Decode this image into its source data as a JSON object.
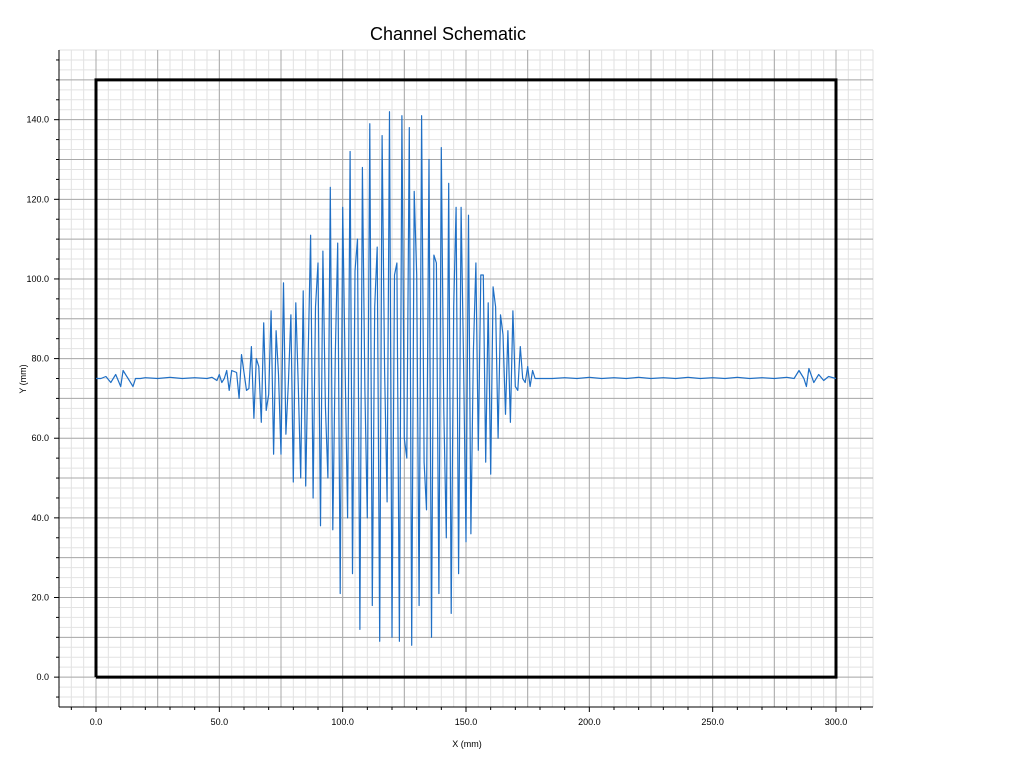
{
  "chart_data": {
    "type": "line",
    "title": "Channel Schematic",
    "xlabel": "X (mm)",
    "ylabel": "Y (mm)",
    "xlim": [
      -15,
      315
    ],
    "ylim": [
      -7.5,
      157.5
    ],
    "grid": true,
    "legend": "none",
    "x_ticks": [
      {
        "value": 0,
        "label": "0.0"
      },
      {
        "value": 50,
        "label": "50.0"
      },
      {
        "value": 100,
        "label": "100.0"
      },
      {
        "value": 150,
        "label": "150.0"
      },
      {
        "value": 200,
        "label": "200.0"
      },
      {
        "value": 250,
        "label": "250.0"
      },
      {
        "value": 300,
        "label": "300.0"
      }
    ],
    "y_ticks": [
      {
        "value": 0,
        "label": "0.0"
      },
      {
        "value": 20,
        "label": "20.0"
      },
      {
        "value": 40,
        "label": "40.0"
      },
      {
        "value": 60,
        "label": "60.0"
      },
      {
        "value": 80,
        "label": "80.0"
      },
      {
        "value": 100,
        "label": "100.0"
      },
      {
        "value": 120,
        "label": "120.0"
      },
      {
        "value": 140,
        "label": "140.0"
      }
    ],
    "boundary": {
      "x": [
        0,
        300,
        300,
        0,
        0
      ],
      "y": [
        0,
        0,
        150,
        150,
        0
      ],
      "color": "#000000"
    },
    "series": [
      {
        "color": "#1f6fc5",
        "points": [
          [
            0,
            75
          ],
          [
            2,
            75
          ],
          [
            4,
            75.5
          ],
          [
            6,
            74
          ],
          [
            8,
            76
          ],
          [
            10,
            73
          ],
          [
            11,
            77
          ],
          [
            13,
            75
          ],
          [
            15,
            73
          ],
          [
            16,
            75
          ],
          [
            18,
            75
          ],
          [
            20,
            75.2
          ],
          [
            25,
            75
          ],
          [
            30,
            75.3
          ],
          [
            35,
            75
          ],
          [
            40,
            75.2
          ],
          [
            45,
            75
          ],
          [
            47,
            75.3
          ],
          [
            49,
            74.5
          ],
          [
            50,
            76
          ],
          [
            51,
            74
          ],
          [
            52,
            75
          ],
          [
            53,
            77
          ],
          [
            54,
            72
          ],
          [
            55,
            77
          ],
          [
            57,
            76.5
          ],
          [
            58,
            70
          ],
          [
            59,
            81
          ],
          [
            61,
            72
          ],
          [
            62,
            72.5
          ],
          [
            63,
            83
          ],
          [
            64,
            65
          ],
          [
            65,
            80
          ],
          [
            66,
            78
          ],
          [
            67,
            64
          ],
          [
            68,
            89
          ],
          [
            69,
            67
          ],
          [
            70,
            71
          ],
          [
            71,
            92
          ],
          [
            72,
            56
          ],
          [
            73,
            87
          ],
          [
            74,
            76
          ],
          [
            75,
            56
          ],
          [
            76,
            99
          ],
          [
            77,
            61
          ],
          [
            78,
            74
          ],
          [
            79,
            91
          ],
          [
            80,
            49
          ],
          [
            81,
            94
          ],
          [
            82,
            73
          ],
          [
            83,
            50
          ],
          [
            84,
            97
          ],
          [
            85,
            48
          ],
          [
            86,
            80
          ],
          [
            87,
            111
          ],
          [
            88,
            45
          ],
          [
            89,
            93
          ],
          [
            90,
            104
          ],
          [
            91,
            38
          ],
          [
            92,
            107
          ],
          [
            93,
            68
          ],
          [
            94,
            50
          ],
          [
            95,
            123
          ],
          [
            96,
            37
          ],
          [
            97,
            81
          ],
          [
            98,
            109
          ],
          [
            99,
            21
          ],
          [
            100,
            118
          ],
          [
            101,
            78
          ],
          [
            102,
            40
          ],
          [
            103,
            132
          ],
          [
            104,
            26
          ],
          [
            105,
            102
          ],
          [
            106,
            110
          ],
          [
            107,
            12
          ],
          [
            108,
            128
          ],
          [
            109,
            72
          ],
          [
            110,
            40
          ],
          [
            111,
            139
          ],
          [
            112,
            18
          ],
          [
            113,
            93
          ],
          [
            114,
            108
          ],
          [
            115,
            9
          ],
          [
            116,
            136
          ],
          [
            117,
            77
          ],
          [
            118,
            44
          ],
          [
            119,
            142
          ],
          [
            120,
            10
          ],
          [
            121,
            101
          ],
          [
            122,
            104
          ],
          [
            123,
            9
          ],
          [
            124,
            141
          ],
          [
            125,
            60
          ],
          [
            126,
            55
          ],
          [
            127,
            138
          ],
          [
            128,
            8
          ],
          [
            129,
            122
          ],
          [
            130,
            101
          ],
          [
            131,
            18
          ],
          [
            132,
            141
          ],
          [
            133,
            54
          ],
          [
            134,
            42
          ],
          [
            135,
            130
          ],
          [
            136,
            10
          ],
          [
            137,
            106
          ],
          [
            138,
            104
          ],
          [
            139,
            21
          ],
          [
            140,
            133
          ],
          [
            141,
            67
          ],
          [
            142,
            35
          ],
          [
            143,
            124
          ],
          [
            144,
            16
          ],
          [
            145,
            93
          ],
          [
            146,
            118
          ],
          [
            147,
            26
          ],
          [
            148,
            118
          ],
          [
            149,
            80
          ],
          [
            150,
            34
          ],
          [
            151,
            116
          ],
          [
            152,
            36
          ],
          [
            153,
            82
          ],
          [
            154,
            104
          ],
          [
            155,
            57
          ],
          [
            156,
            101
          ],
          [
            157,
            101
          ],
          [
            158,
            54
          ],
          [
            159,
            94
          ],
          [
            160,
            51
          ],
          [
            161,
            98
          ],
          [
            162,
            93
          ],
          [
            163,
            60
          ],
          [
            164,
            91
          ],
          [
            165,
            86
          ],
          [
            166,
            66
          ],
          [
            167,
            87
          ],
          [
            168,
            64
          ],
          [
            169,
            92
          ],
          [
            170,
            73
          ],
          [
            171,
            72
          ],
          [
            172,
            83
          ],
          [
            173,
            75
          ],
          [
            174,
            74
          ],
          [
            175,
            78
          ],
          [
            176,
            73
          ],
          [
            177,
            77
          ],
          [
            178,
            75
          ],
          [
            180,
            75
          ],
          [
            185,
            75
          ],
          [
            190,
            75.2
          ],
          [
            195,
            75
          ],
          [
            200,
            75.3
          ],
          [
            205,
            75
          ],
          [
            210,
            75.2
          ],
          [
            215,
            75
          ],
          [
            220,
            75.3
          ],
          [
            225,
            75
          ],
          [
            230,
            75.2
          ],
          [
            235,
            75
          ],
          [
            240,
            75.3
          ],
          [
            245,
            75
          ],
          [
            250,
            75.2
          ],
          [
            255,
            75
          ],
          [
            260,
            75.3
          ],
          [
            265,
            75
          ],
          [
            270,
            75.2
          ],
          [
            275,
            75
          ],
          [
            280,
            75.3
          ],
          [
            283,
            75
          ],
          [
            285,
            77
          ],
          [
            287,
            75
          ],
          [
            288,
            73
          ],
          [
            289,
            77.5
          ],
          [
            291,
            74
          ],
          [
            293,
            76
          ],
          [
            295,
            74.5
          ],
          [
            297,
            75.5
          ],
          [
            300,
            75
          ]
        ]
      }
    ]
  }
}
